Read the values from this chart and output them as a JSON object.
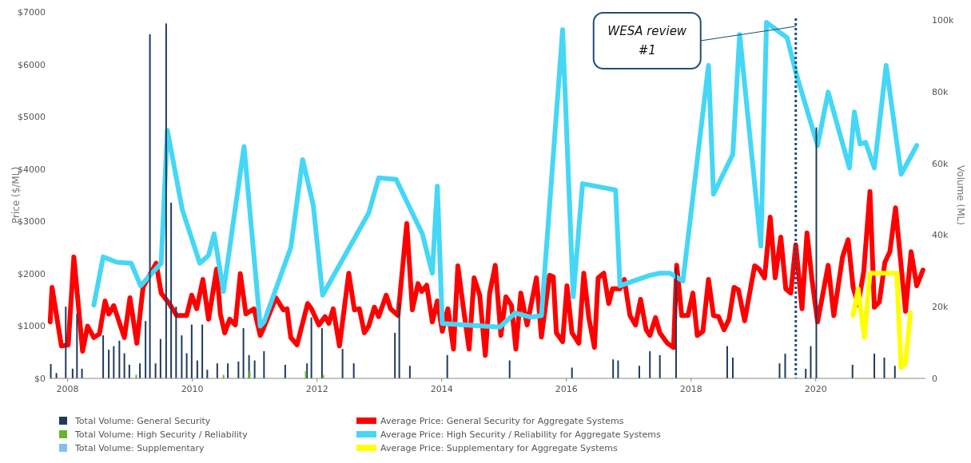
{
  "chart_data": {
    "type": "line",
    "ylabel": "Price ($/ML)",
    "y2label": "Volume (ML)",
    "xlim": [
      2007.71,
      2021.76
    ],
    "xticks": [
      2008,
      2010,
      2012,
      2014,
      2016,
      2018,
      2020
    ],
    "ylim": [
      0,
      7000
    ],
    "yticks": [
      {
        "value": 0,
        "label": "$0"
      },
      {
        "value": 1000,
        "label": "$1000"
      },
      {
        "value": 2000,
        "label": "$2000"
      },
      {
        "value": 3000,
        "label": "$3000"
      },
      {
        "value": 4000,
        "label": "$4000"
      },
      {
        "value": 5000,
        "label": "$5000"
      },
      {
        "value": 6000,
        "label": "$6000"
      },
      {
        "value": 7000,
        "label": "$7000"
      }
    ],
    "y2lim": [
      0,
      102200
    ],
    "y2ticks": [
      {
        "value": 0,
        "label": "0"
      },
      {
        "value": 20000,
        "label": "20k"
      },
      {
        "value": 40000,
        "label": "40k"
      },
      {
        "value": 60000,
        "label": "60k"
      },
      {
        "value": 80000,
        "label": "80k"
      },
      {
        "value": 100000,
        "label": "100k"
      }
    ],
    "grid": false,
    "legend": "bottom",
    "line_style": "solid",
    "marker": "none",
    "ref_lines": [
      {
        "axis": "x",
        "value": 2019.68,
        "label": "WESA review #1",
        "color": "#1f4e79",
        "line_style": "dotted"
      }
    ],
    "series": [
      {
        "name": "Total Volume: General Security",
        "type": "bar",
        "axis": "y2",
        "color": "#1f3b5c",
        "x": [
          2007.73,
          2007.82,
          2007.97,
          2008.08,
          2008.15,
          2008.23,
          2008.57,
          2008.66,
          2008.74,
          2008.83,
          2008.91,
          2008.99,
          2009.16,
          2009.25,
          2009.32,
          2009.41,
          2009.49,
          2009.58,
          2009.66,
          2009.74,
          2009.83,
          2009.91,
          2009.99,
          2010.08,
          2010.16,
          2010.24,
          2010.4,
          2010.57,
          2010.74,
          2010.82,
          2010.91,
          2011.0,
          2011.15,
          2011.49,
          2011.84,
          2011.91,
          2012.08,
          2012.41,
          2012.59,
          2013.25,
          2013.32,
          2013.49,
          2014.09,
          2015.09,
          2016.09,
          2016.75,
          2016.83,
          2017.17,
          2017.34,
          2017.5,
          2017.76,
          2018.58,
          2018.67,
          2019.42,
          2019.51,
          2019.84,
          2019.92,
          2020.01,
          2020.59,
          2020.94,
          2021.1,
          2021.27
        ],
        "values": [
          4000,
          1500,
          20000,
          2700,
          18000,
          2700,
          12000,
          8000,
          9000,
          10500,
          7000,
          3800,
          4200,
          16000,
          96000,
          4200,
          11000,
          99000,
          49000,
          20000,
          12000,
          7000,
          15000,
          5000,
          15000,
          2400,
          4200,
          4200,
          4700,
          14000,
          6500,
          5000,
          7600,
          3800,
          4200,
          17000,
          14000,
          8200,
          4200,
          12700,
          21000,
          3500,
          6500,
          5000,
          3000,
          5300,
          5000,
          3500,
          7600,
          6500,
          31000,
          9000,
          5800,
          4200,
          6900,
          2700,
          9000,
          70000,
          3800,
          6900,
          5800,
          3500
        ]
      },
      {
        "name": "Total Volume: High Security / Reliability",
        "type": "bar",
        "axis": "y2",
        "color": "#6ab42d",
        "x": [
          2009.1,
          2010.5,
          2010.92,
          2011.82,
          2012.1
        ],
        "values": [
          1000,
          1000,
          2000,
          2000,
          1000
        ]
      },
      {
        "name": "Total Volume: Supplementary",
        "type": "bar",
        "axis": "y2",
        "color": "#7fc3ea"
      },
      {
        "name": "Average Price: General Security for Aggregate Systems",
        "color": "#ff0000",
        "x": [
          2007.72,
          2007.75,
          2007.9,
          2008.01,
          2008.1,
          2008.24,
          2008.32,
          2008.42,
          2008.51,
          2008.6,
          2008.66,
          2008.74,
          2008.91,
          2009.0,
          2009.11,
          2009.21,
          2009.3,
          2009.42,
          2009.5,
          2009.63,
          2009.75,
          2009.91,
          2009.99,
          2010.07,
          2010.17,
          2010.26,
          2010.39,
          2010.45,
          2010.52,
          2010.6,
          2010.69,
          2010.77,
          2010.86,
          2010.99,
          2011.09,
          2011.15,
          2011.34,
          2011.46,
          2011.52,
          2011.58,
          2011.68,
          2011.85,
          2011.91,
          2012.03,
          2012.13,
          2012.19,
          2012.26,
          2012.36,
          2012.51,
          2012.6,
          2012.68,
          2012.76,
          2012.83,
          2012.92,
          2012.99,
          2013.11,
          2013.18,
          2013.3,
          2013.44,
          2013.53,
          2013.62,
          2013.68,
          2013.76,
          2013.85,
          2013.93,
          2014.01,
          2014.1,
          2014.19,
          2014.26,
          2014.35,
          2014.44,
          2014.52,
          2014.61,
          2014.7,
          2014.77,
          2014.86,
          2014.95,
          2015.03,
          2015.12,
          2015.19,
          2015.27,
          2015.37,
          2015.52,
          2015.6,
          2015.73,
          2015.79,
          2015.84,
          2015.94,
          2016.01,
          2016.09,
          2016.2,
          2016.28,
          2016.36,
          2016.45,
          2016.51,
          2016.6,
          2016.68,
          2016.74,
          2016.86,
          2016.93,
          2017.02,
          2017.11,
          2017.19,
          2017.28,
          2017.34,
          2017.43,
          2017.5,
          2017.62,
          2017.72,
          2017.77,
          2017.85,
          2017.95,
          2018.03,
          2018.1,
          2018.19,
          2018.28,
          2018.36,
          2018.44,
          2018.53,
          2018.61,
          2018.69,
          2018.76,
          2018.86,
          2019.02,
          2019.09,
          2019.18,
          2019.27,
          2019.35,
          2019.44,
          2019.52,
          2019.6,
          2019.68,
          2019.78,
          2019.86,
          2019.94,
          2020.03,
          2020.2,
          2020.29,
          2020.43,
          2020.52,
          2020.6,
          2020.68,
          2020.77,
          2020.87,
          2020.94,
          2021.02,
          2021.11,
          2021.19,
          2021.28,
          2021.37,
          2021.44,
          2021.53,
          2021.62,
          2021.72
        ],
        "values": [
          1080,
          1740,
          620,
          640,
          2320,
          520,
          1000,
          780,
          850,
          1480,
          1230,
          1390,
          780,
          1540,
          670,
          1740,
          1940,
          2200,
          1630,
          1430,
          1200,
          1200,
          1590,
          1330,
          1890,
          1130,
          2090,
          1230,
          870,
          1130,
          1020,
          2000,
          1230,
          1330,
          820,
          980,
          1540,
          1310,
          1330,
          780,
          640,
          1430,
          1330,
          1020,
          1180,
          1050,
          1330,
          620,
          2010,
          1310,
          1330,
          870,
          1000,
          1360,
          1180,
          1590,
          1330,
          1200,
          2960,
          1310,
          1810,
          1660,
          1780,
          1080,
          1480,
          900,
          1330,
          560,
          2150,
          1330,
          560,
          1920,
          1590,
          440,
          1630,
          2160,
          820,
          1560,
          1390,
          560,
          1630,
          1020,
          1920,
          790,
          1970,
          1940,
          870,
          700,
          1770,
          870,
          670,
          2010,
          1160,
          590,
          1920,
          2010,
          1430,
          1710,
          1710,
          1890,
          1200,
          1020,
          1510,
          930,
          820,
          1160,
          870,
          670,
          590,
          2160,
          1200,
          1200,
          1630,
          820,
          900,
          1890,
          1200,
          1180,
          930,
          1130,
          1740,
          1690,
          1100,
          2150,
          2090,
          1920,
          3080,
          1920,
          2700,
          1710,
          1630,
          2550,
          1330,
          2780,
          1890,
          1080,
          2160,
          1200,
          2320,
          2650,
          1740,
          1400,
          2040,
          3570,
          1360,
          1460,
          2220,
          2420,
          3260,
          2150,
          1280,
          2420,
          1770,
          2070
        ]
      },
      {
        "name": "Average Price: High Security / Reliability for Aggregate Systems",
        "color": "#45d7f5",
        "x": [
          2008.42,
          2008.57,
          2008.79,
          2009.02,
          2009.17,
          2009.5,
          2009.6,
          2009.84,
          2010.12,
          2010.26,
          2010.35,
          2010.5,
          2010.83,
          2011.09,
          2011.15,
          2011.58,
          2011.77,
          2011.94,
          2012.09,
          2012.83,
          2012.99,
          2013.27,
          2013.69,
          2013.85,
          2013.93,
          2014.01,
          2014.93,
          2015.18,
          2015.43,
          2015.6,
          2015.94,
          2016.11,
          2016.26,
          2016.79,
          2016.86,
          2017.34,
          2017.5,
          2017.66,
          2017.87,
          2018.28,
          2018.36,
          2018.67,
          2018.78,
          2019.12,
          2019.21,
          2019.54,
          2019.69,
          2020.03,
          2020.2,
          2020.54,
          2020.62,
          2020.71,
          2020.8,
          2020.94,
          2021.13,
          2021.37,
          2021.62
        ],
        "values": [
          1400,
          2320,
          2220,
          2200,
          1770,
          2200,
          4740,
          3220,
          2200,
          2350,
          2760,
          1660,
          4430,
          1000,
          1080,
          2500,
          4180,
          3310,
          1590,
          3160,
          3830,
          3800,
          2760,
          2010,
          3670,
          1050,
          980,
          1250,
          1170,
          1200,
          6660,
          1560,
          3720,
          3600,
          1770,
          1970,
          2010,
          2010,
          1860,
          5980,
          3520,
          4280,
          6570,
          2530,
          6800,
          6510,
          5810,
          4450,
          5470,
          4020,
          5090,
          4480,
          4510,
          4020,
          5980,
          3900,
          4450
        ]
      },
      {
        "name": "Average Price: Supplementary for Aggregate Systems",
        "color": "#ffff00",
        "x": [
          2020.6,
          2020.68,
          2020.78,
          2020.87,
          2021.3,
          2021.37,
          2021.44,
          2021.52
        ],
        "values": [
          1200,
          1710,
          780,
          2010,
          2010,
          210,
          290,
          1250
        ]
      }
    ]
  }
}
